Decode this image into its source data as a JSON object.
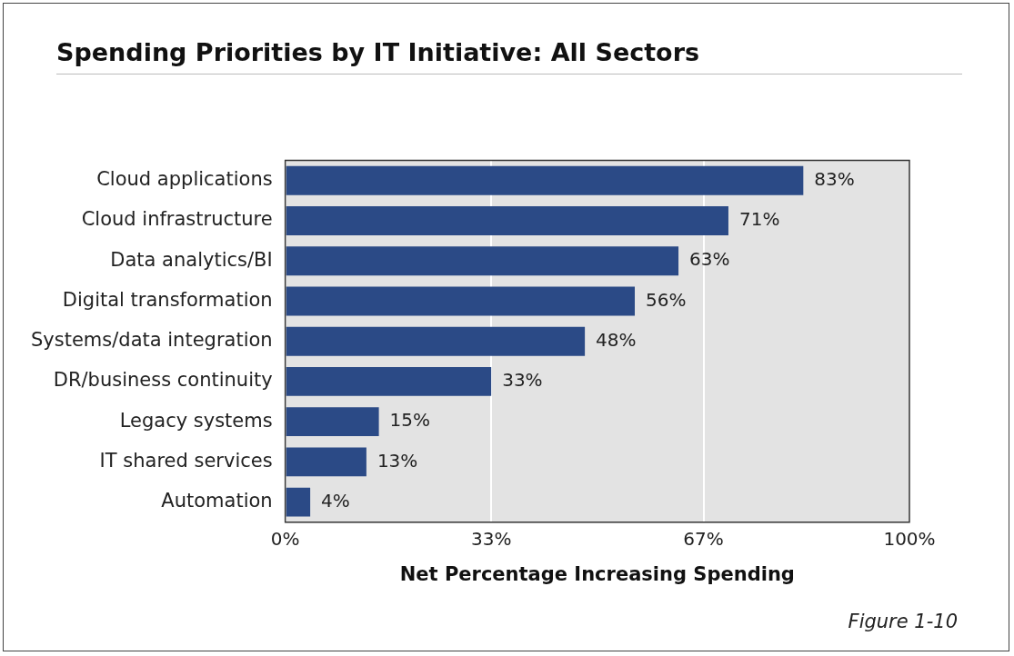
{
  "chart_data": {
    "type": "bar",
    "orientation": "horizontal",
    "title": "Spending Priorities by IT Initiative: All Sectors",
    "xlabel": "Net Percentage Increasing Spending",
    "categories": [
      "Cloud applications",
      "Cloud infrastructure",
      "Data analytics/BI",
      "Digital transformation",
      "Systems/data integration",
      "DR/business continuity",
      "Legacy systems",
      "IT shared services",
      "Automation"
    ],
    "values": [
      83,
      71,
      63,
      56,
      48,
      33,
      15,
      13,
      4
    ],
    "value_labels": [
      "83%",
      "71%",
      "63%",
      "56%",
      "48%",
      "33%",
      "15%",
      "13%",
      "4%"
    ],
    "color": "#2b4a86",
    "xlim": [
      0,
      100
    ],
    "xticks": [
      {
        "value": 0,
        "label": "0%"
      },
      {
        "value": 33,
        "label": "33%"
      },
      {
        "value": 67,
        "label": "67%"
      },
      {
        "value": 100,
        "label": "100%"
      }
    ],
    "grid": "x",
    "legend": false,
    "annotations": [
      "Figure 1-10"
    ]
  }
}
